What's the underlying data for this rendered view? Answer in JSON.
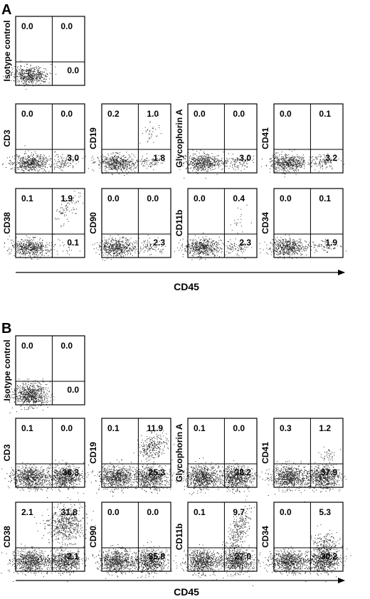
{
  "chart_data": [
    {
      "type": "scatter",
      "panel": "A",
      "xlabel": "CD45",
      "quadrant_order": [
        "upper-left",
        "upper-right",
        "lower-right"
      ],
      "plots": [
        {
          "ylabel": "Isotype control",
          "quadrants": [
            "0.0",
            "0.0",
            "0.0"
          ]
        },
        {
          "ylabel": "CD3",
          "quadrants": [
            "0.0",
            "0.0",
            "3.0"
          ]
        },
        {
          "ylabel": "CD19",
          "quadrants": [
            "0.2",
            "1.0",
            "1.8"
          ]
        },
        {
          "ylabel": "Glycophorin A",
          "quadrants": [
            "0.0",
            "0.0",
            "3.0"
          ]
        },
        {
          "ylabel": "CD41",
          "quadrants": [
            "0.0",
            "0.1",
            "3.2"
          ]
        },
        {
          "ylabel": "CD38",
          "quadrants": [
            "0.1",
            "1.9",
            "0.1"
          ]
        },
        {
          "ylabel": "CD90",
          "quadrants": [
            "0.0",
            "0.0",
            "2.3"
          ]
        },
        {
          "ylabel": "CD11b",
          "quadrants": [
            "0.0",
            "0.4",
            "2.3"
          ]
        },
        {
          "ylabel": "CD34",
          "quadrants": [
            "0.0",
            "0.1",
            "1.9"
          ]
        }
      ]
    },
    {
      "type": "scatter",
      "panel": "B",
      "xlabel": "CD45",
      "quadrant_order": [
        "upper-left",
        "upper-right",
        "lower-right"
      ],
      "plots": [
        {
          "ylabel": "Isotype control",
          "quadrants": [
            "0.0",
            "0.0",
            "0.0"
          ]
        },
        {
          "ylabel": "CD3",
          "quadrants": [
            "0.1",
            "0.0",
            "36.3"
          ]
        },
        {
          "ylabel": "CD19",
          "quadrants": [
            "0.1",
            "11.9",
            "25.3"
          ]
        },
        {
          "ylabel": "Glycophorin A",
          "quadrants": [
            "0.1",
            "0.0",
            "38.2"
          ]
        },
        {
          "ylabel": "CD41",
          "quadrants": [
            "0.3",
            "1.2",
            "37.9"
          ]
        },
        {
          "ylabel": "CD38",
          "quadrants": [
            "2.1",
            "31.8",
            "2.1"
          ]
        },
        {
          "ylabel": "CD90",
          "quadrants": [
            "0.0",
            "0.0",
            "35.8"
          ]
        },
        {
          "ylabel": "CD11b",
          "quadrants": [
            "0.1",
            "9.7",
            "27.0"
          ]
        },
        {
          "ylabel": "CD34",
          "quadrants": [
            "0.0",
            "5.3",
            "30.2"
          ]
        }
      ]
    }
  ]
}
